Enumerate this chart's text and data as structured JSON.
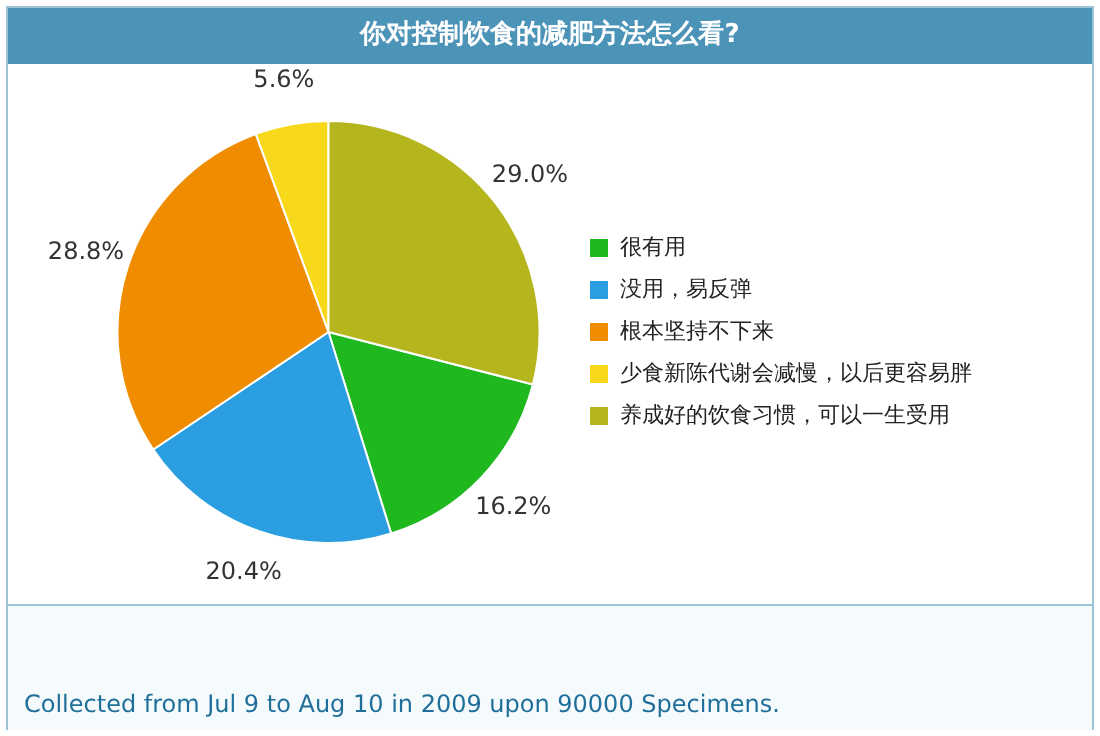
{
  "chart_data": {
    "type": "pie",
    "title": "你对控制饮食的减肥方法怎么看?",
    "categories": [
      "很有用",
      "没用，易反弹",
      "根本坚持不下来",
      "少食新陈代谢会减慢，以后更容易胖",
      "养成好的饮食习惯，可以一生受用"
    ],
    "values": [
      16.2,
      20.4,
      28.8,
      5.6,
      29.0
    ],
    "colors": [
      "#1fb81f",
      "#2a9ee0",
      "#f08c00",
      "#f8d81a",
      "#b5b51e"
    ],
    "value_labels": [
      "16.2%",
      "20.4%",
      "28.8%",
      "5.6%",
      "29.0%"
    ],
    "legend": "right",
    "annotations": [
      "Collected from Jul 9 to Aug 10 in 2009 upon 90000 Specimens."
    ]
  }
}
